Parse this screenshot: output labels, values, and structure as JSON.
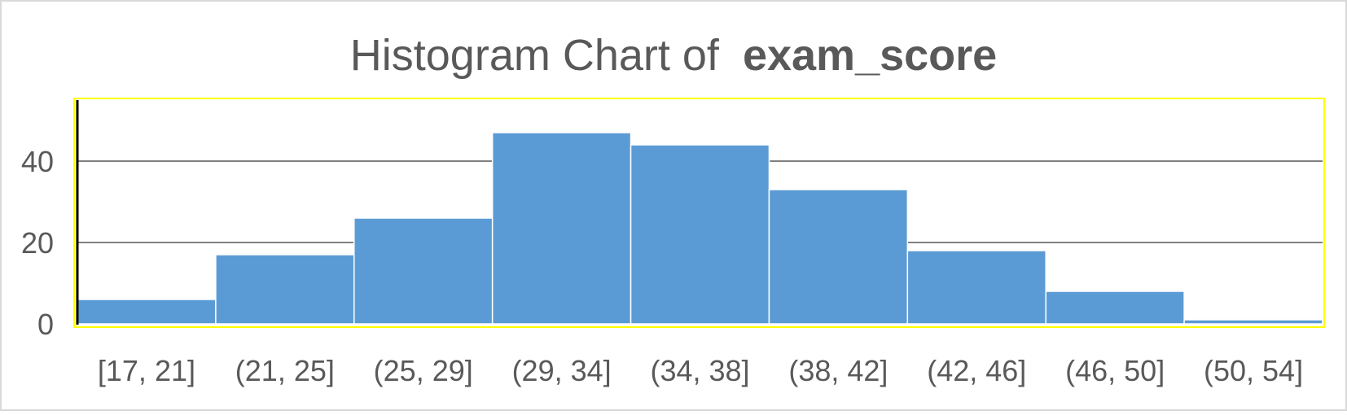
{
  "chart_data": {
    "type": "bar",
    "title": "Histogram Chart  of",
    "title_bold": "exam_score",
    "categories": [
      "[17, 21]",
      "(21, 25]",
      "(25, 29]",
      "(29, 34]",
      "(34, 38]",
      "(38, 42]",
      "(42, 46]",
      "(46, 50]",
      "(50, 54]"
    ],
    "values": [
      6,
      17,
      26,
      47,
      44,
      33,
      18,
      8,
      1
    ],
    "ylim": [
      0,
      55
    ],
    "yticks": [
      0,
      20,
      40
    ],
    "grid": true,
    "legend": "none",
    "xlabel": "",
    "ylabel": "",
    "colors": {
      "bar": "#5b9bd5",
      "bar_border": "#ffffff",
      "plot_border": "#ffff00",
      "gridline": "#000000",
      "axis": "#000000",
      "text": "#595959",
      "frame": "#d9d9d9"
    }
  }
}
